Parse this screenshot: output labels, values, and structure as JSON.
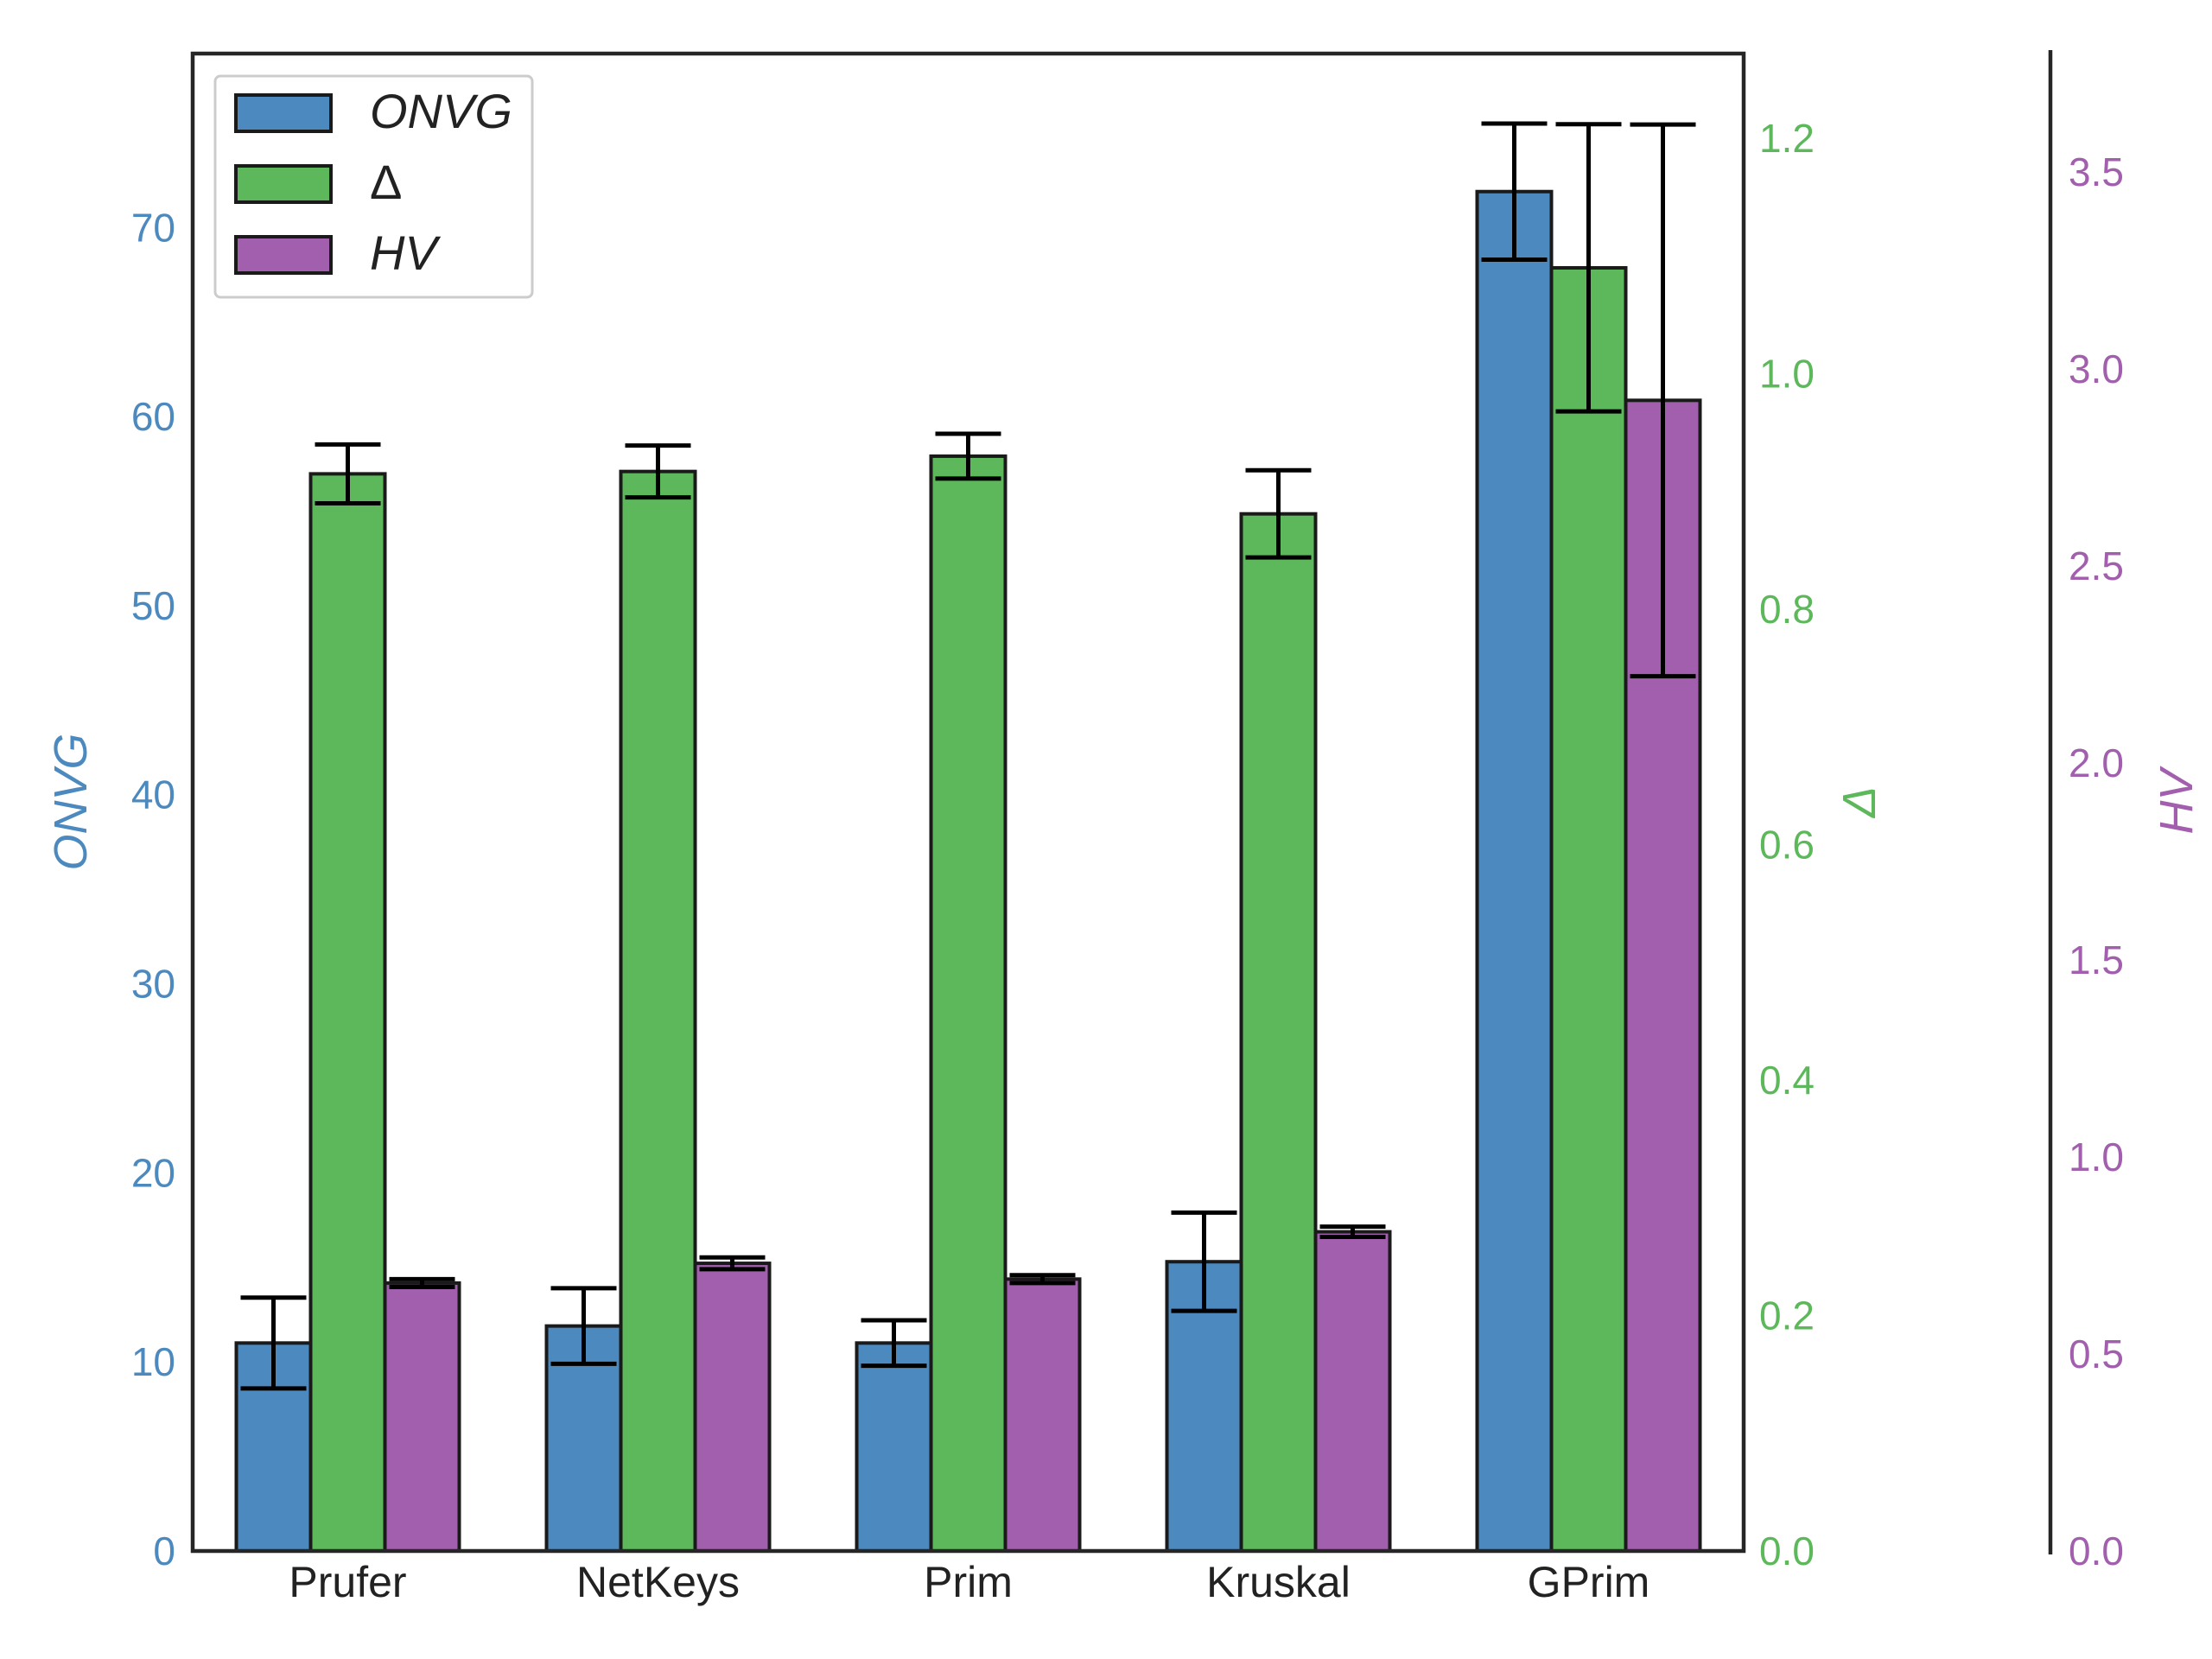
{
  "chart_data": {
    "type": "bar",
    "categories": [
      "Prufer",
      "NetKeys",
      "Prim",
      "Kruskal",
      "GPrim"
    ],
    "series": [
      {
        "name": "ONVG",
        "axis": "left",
        "color": "#4b89bf",
        "values": [
          11.0,
          11.9,
          11.0,
          15.3,
          71.9
        ],
        "err": [
          2.4,
          2.0,
          1.2,
          2.6,
          3.6
        ]
      },
      {
        "name": "Δ",
        "axis": "right1",
        "color": "#5cb85a",
        "values": [
          0.915,
          0.917,
          0.93,
          0.881,
          1.09
        ],
        "err": [
          0.025,
          0.022,
          0.019,
          0.037,
          0.122
        ]
      },
      {
        "name": "HV",
        "axis": "right2",
        "color": "#a25fad",
        "values": [
          0.68,
          0.73,
          0.69,
          0.81,
          2.92
        ],
        "err": [
          0.01,
          0.015,
          0.01,
          0.013,
          0.7
        ]
      }
    ],
    "axes": {
      "left": {
        "label": "ONVG",
        "ylim": [
          0,
          79.2
        ],
        "ticks": [
          "0",
          "10",
          "20",
          "30",
          "40",
          "50",
          "60",
          "70"
        ],
        "color": "#4b89bf"
      },
      "right1": {
        "label": "Δ",
        "ylim": [
          0,
          1.272
        ],
        "ticks": [
          "0.0",
          "0.2",
          "0.4",
          "0.6",
          "0.8",
          "1.0",
          "1.2"
        ],
        "color": "#5cb85a"
      },
      "right2": {
        "label": "HV",
        "ylim": [
          0,
          3.8
        ],
        "ticks": [
          "0.0",
          "0.5",
          "1.0",
          "1.5",
          "2.0",
          "2.5",
          "3.0",
          "3.5"
        ],
        "color": "#a25fad"
      }
    },
    "legend": {
      "placement": "top-left",
      "entries": [
        "ONVG",
        "Δ",
        "HV"
      ]
    },
    "grid": false
  }
}
